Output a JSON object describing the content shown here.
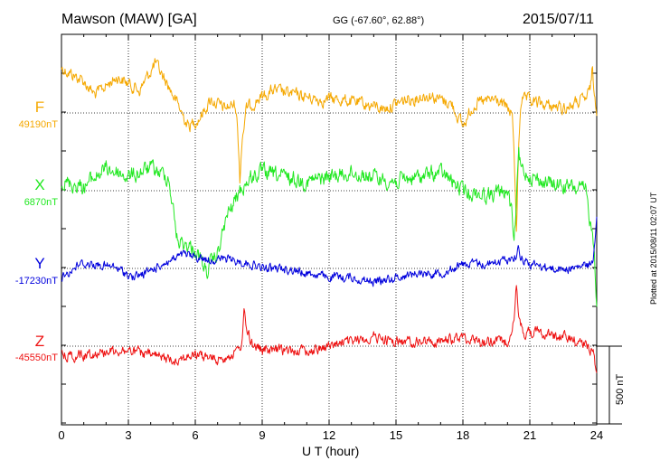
{
  "header": {
    "title": "Mawson (MAW)  [GA]",
    "coords": "GG (-67.60°,  62.88°)",
    "date": "2015/07/11"
  },
  "side_note": "Plotted at 2015/08/11 02:07 UT",
  "chart_data": {
    "type": "line",
    "xlabel": "U T (hour)",
    "xlim": [
      0,
      24
    ],
    "xticks": [
      "0",
      "3",
      "6",
      "9",
      "12",
      "15",
      "18",
      "21",
      "24"
    ],
    "grid": true,
    "scale_bar": {
      "label": "500 nT",
      "value_nT": 500
    },
    "series": [
      {
        "name": "F",
        "baseline_label": "49190nT",
        "baseline_nT": 49190,
        "color": "#f5a800",
        "keypoints": [
          [
            0,
            -50
          ],
          [
            1,
            -35
          ],
          [
            1.5,
            -20
          ],
          [
            2.5,
            -40
          ],
          [
            3.5,
            -25
          ],
          [
            4.2,
            -55
          ],
          [
            4.8,
            -30
          ],
          [
            5.2,
            -10
          ],
          [
            5.7,
            15
          ],
          [
            6.2,
            5
          ],
          [
            6.7,
            -15
          ],
          [
            7.3,
            -5
          ],
          [
            7.8,
            -10
          ],
          [
            8,
            45
          ],
          [
            8.3,
            -5
          ],
          [
            8.8,
            -15
          ],
          [
            9.5,
            -25
          ],
          [
            10.5,
            -20
          ],
          [
            11.5,
            -15
          ],
          [
            12.5,
            -15
          ],
          [
            13.5,
            -10
          ],
          [
            14.5,
            -5
          ],
          [
            15.5,
            -15
          ],
          [
            16.5,
            -20
          ],
          [
            17.5,
            -10
          ],
          [
            18,
            15
          ],
          [
            18.5,
            -10
          ],
          [
            19.5,
            -15
          ],
          [
            20.2,
            0
          ],
          [
            20.4,
            85
          ],
          [
            20.6,
            -15
          ],
          [
            21.5,
            -10
          ],
          [
            22.5,
            -5
          ],
          [
            23.5,
            -15
          ],
          [
            23.8,
            -30
          ],
          [
            24,
            -5
          ]
        ],
        "spikes": [
          [
            8,
            45
          ],
          [
            20.4,
            85
          ],
          [
            23.8,
            -30
          ]
        ]
      },
      {
        "name": "X",
        "baseline_label": "6870nT",
        "baseline_nT": 6870,
        "color": "#22e822",
        "keypoints": [
          [
            0,
            -10
          ],
          [
            1,
            -5
          ],
          [
            2,
            -25
          ],
          [
            3,
            -15
          ],
          [
            4,
            -25
          ],
          [
            4.8,
            -15
          ],
          [
            5.2,
            55
          ],
          [
            6,
            65
          ],
          [
            6.5,
            90
          ],
          [
            7,
            70
          ],
          [
            7.4,
            30
          ],
          [
            8,
            0
          ],
          [
            8.5,
            -15
          ],
          [
            9,
            -20
          ],
          [
            10,
            -15
          ],
          [
            11,
            -10
          ],
          [
            12,
            -15
          ],
          [
            13,
            -20
          ],
          [
            14,
            -15
          ],
          [
            15,
            -10
          ],
          [
            16,
            -15
          ],
          [
            17,
            -20
          ],
          [
            18,
            0
          ],
          [
            19,
            5
          ],
          [
            20,
            0
          ],
          [
            20.3,
            40
          ],
          [
            20.5,
            -25
          ],
          [
            21.5,
            -10
          ],
          [
            22.5,
            -5
          ],
          [
            23.5,
            0
          ],
          [
            24,
            80
          ]
        ],
        "spikes": [
          [
            20.3,
            40
          ],
          [
            20.5,
            -25
          ],
          [
            24,
            80
          ]
        ]
      },
      {
        "name": "Y",
        "baseline_label": "-17230nT",
        "baseline_nT": -17230,
        "color": "#0000dd",
        "keypoints": [
          [
            0,
            10
          ],
          [
            0.8,
            -5
          ],
          [
            1.5,
            -5
          ],
          [
            2.5,
            0
          ],
          [
            3.2,
            10
          ],
          [
            3.8,
            5
          ],
          [
            4.5,
            -5
          ],
          [
            5.5,
            -15
          ],
          [
            6.5,
            -10
          ],
          [
            7.5,
            -10
          ],
          [
            8.5,
            -5
          ],
          [
            9,
            0
          ],
          [
            10,
            0
          ],
          [
            11,
            5
          ],
          [
            12,
            10
          ],
          [
            13,
            10
          ],
          [
            14,
            15
          ],
          [
            15,
            10
          ],
          [
            16,
            5
          ],
          [
            17,
            5
          ],
          [
            18,
            -5
          ],
          [
            19,
            -5
          ],
          [
            20,
            -10
          ],
          [
            20.5,
            -15
          ],
          [
            21,
            -5
          ],
          [
            22,
            0
          ],
          [
            23,
            0
          ],
          [
            23.8,
            -5
          ],
          [
            24,
            -40
          ]
        ],
        "spikes": [
          [
            24,
            -40
          ],
          [
            20.5,
            -15
          ]
        ]
      },
      {
        "name": "Z",
        "baseline_label": "-45550nT",
        "baseline_nT": -45550,
        "color": "#ee1111",
        "keypoints": [
          [
            0,
            10
          ],
          [
            1,
            10
          ],
          [
            2,
            5
          ],
          [
            3,
            5
          ],
          [
            4,
            10
          ],
          [
            5,
            15
          ],
          [
            6,
            10
          ],
          [
            7,
            15
          ],
          [
            8,
            5
          ],
          [
            8.2,
            -25
          ],
          [
            8.5,
            -5
          ],
          [
            9,
            5
          ],
          [
            10,
            5
          ],
          [
            11,
            5
          ],
          [
            12,
            0
          ],
          [
            13,
            -5
          ],
          [
            14,
            -10
          ],
          [
            15,
            -5
          ],
          [
            16,
            -5
          ],
          [
            17,
            -5
          ],
          [
            18,
            -10
          ],
          [
            19,
            -5
          ],
          [
            20,
            -5
          ],
          [
            20.4,
            -40
          ],
          [
            20.7,
            -15
          ],
          [
            21.5,
            -15
          ],
          [
            22.5,
            -10
          ],
          [
            23.3,
            -5
          ],
          [
            23.8,
            5
          ],
          [
            24,
            20
          ]
        ],
        "spikes": [
          [
            8.2,
            -25
          ],
          [
            20.4,
            -40
          ],
          [
            24,
            20
          ]
        ]
      }
    ]
  }
}
